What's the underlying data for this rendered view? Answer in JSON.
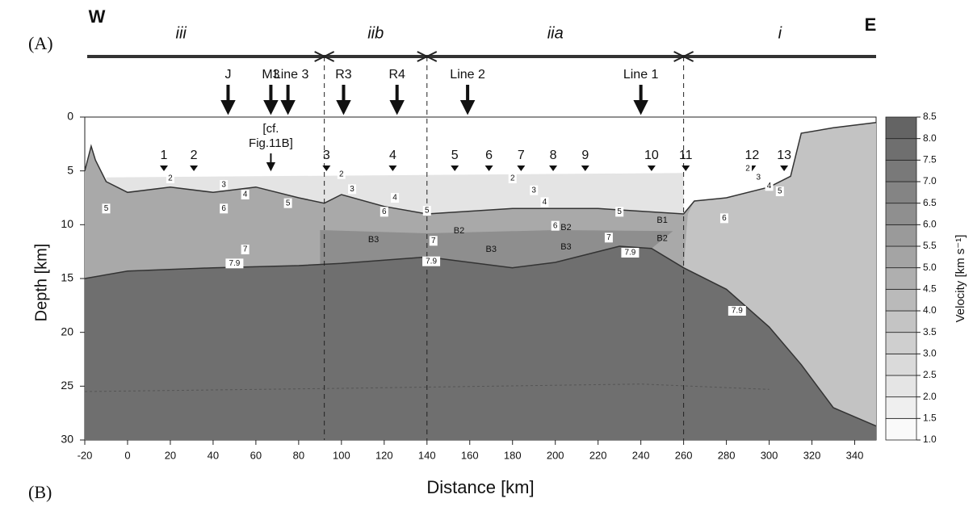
{
  "panel_labels": [
    "(A)",
    "(B)"
  ],
  "compass": {
    "west": "W",
    "east": "E"
  },
  "zones": [
    "iii",
    "iib",
    "iia",
    "i"
  ],
  "profile_arrows": [
    "J",
    "M3",
    "Line 3",
    "R3",
    "R4",
    "Line 2",
    "Line 1"
  ],
  "note": [
    "[cf.",
    "Fig.11B]"
  ],
  "stations": [
    1,
    2,
    3,
    4,
    5,
    6,
    7,
    8,
    9,
    10,
    11,
    12,
    13
  ],
  "contour_labels": [
    2,
    3,
    5,
    4,
    6,
    5,
    7,
    7.9,
    2,
    3,
    4,
    6,
    5,
    7,
    7.9,
    2,
    3,
    4,
    5,
    6,
    7,
    7.9,
    2,
    3,
    4,
    5,
    6,
    7.9
  ],
  "block_labels": [
    "B1",
    "B2",
    "B2",
    "B2",
    "B3",
    "B3",
    "B3"
  ],
  "x_axis": {
    "label": "Distance [km]",
    "lim": [
      -20,
      350
    ],
    "ticks": [
      -20,
      0,
      20,
      40,
      60,
      80,
      100,
      120,
      140,
      160,
      180,
      200,
      220,
      240,
      260,
      280,
      300,
      320,
      340
    ]
  },
  "y_axis": {
    "label": "Depth [km]",
    "lim": [
      0,
      30
    ],
    "ticks": [
      0,
      5,
      10,
      15,
      20,
      25,
      30
    ]
  },
  "colorbar": {
    "label": "Velocity [km s⁻¹]",
    "lim": [
      1,
      8.5
    ],
    "ticks": [
      {
        "value": 1,
        "label": "1.0"
      },
      1.5,
      {
        "value": 2,
        "label": "2.0"
      },
      2.5,
      {
        "value": 3,
        "label": "3.0"
      },
      3.5,
      {
        "value": 4,
        "label": "4.0"
      },
      4.5,
      {
        "value": 5,
        "label": "5.0"
      },
      5.5,
      {
        "value": 6,
        "label": "6.0"
      },
      6.5,
      {
        "value": 7,
        "label": "7.0"
      },
      7.5,
      {
        "value": 8,
        "label": "8.0"
      },
      8.5
    ]
  }
}
